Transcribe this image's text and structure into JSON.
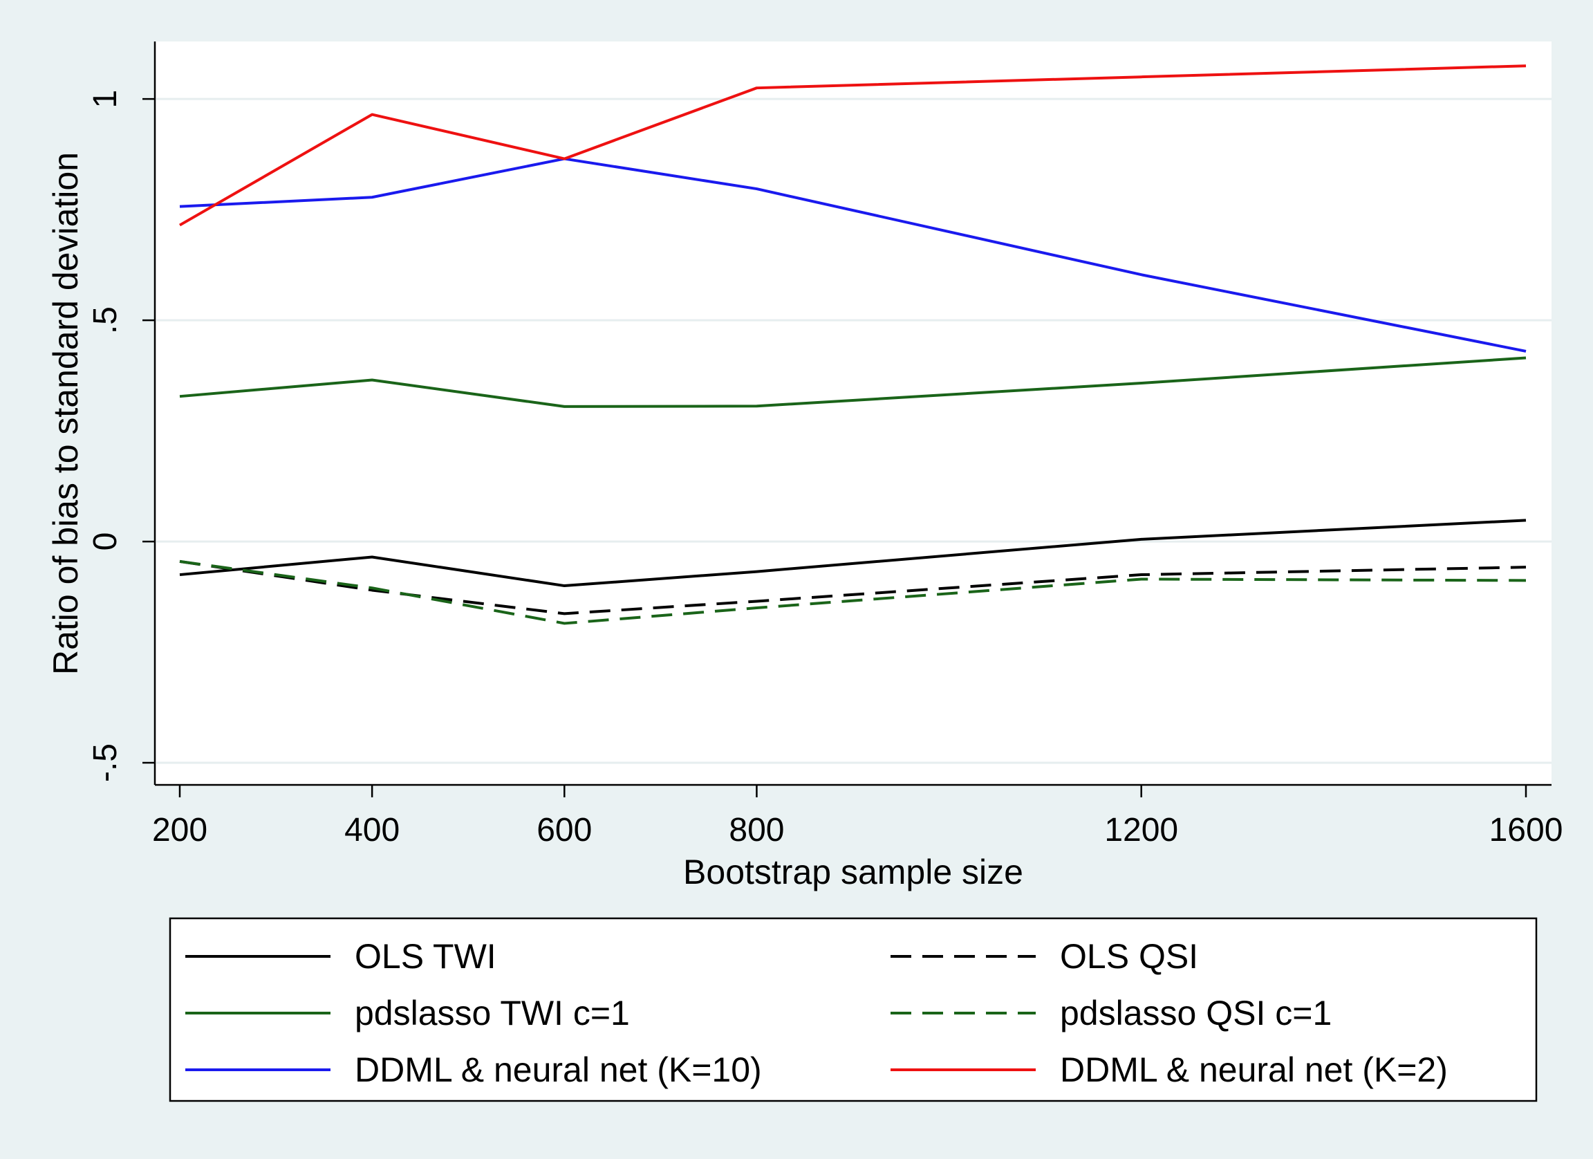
{
  "chart_data": {
    "type": "line",
    "xlabel": "Bootstrap sample size",
    "ylabel": "Ratio of bias to standard deviation",
    "x": [
      200,
      400,
      600,
      800,
      1200,
      1600
    ],
    "xticks": [
      "200",
      "400",
      "600",
      "800",
      "1200",
      "1600"
    ],
    "yticks": [
      "-.5",
      "0",
      ".5",
      "1"
    ],
    "ytick_values": [
      -0.5,
      0,
      0.5,
      1
    ],
    "xlim": [
      200,
      1600
    ],
    "ylim": [
      -0.55,
      1.13
    ],
    "grid": "horizontal",
    "legend_position": "bottom",
    "series": [
      {
        "name": "OLS TWI",
        "color": "#000000",
        "dash": "solid",
        "values": [
          -0.075,
          -0.035,
          -0.1,
          -0.068,
          0.005,
          0.048
        ]
      },
      {
        "name": "OLS QSI",
        "color": "#000000",
        "dash": "dashed",
        "values": [
          -0.045,
          -0.11,
          -0.163,
          -0.135,
          -0.075,
          -0.058
        ]
      },
      {
        "name": "pdslasso TWI c=1",
        "color": "#1a6419",
        "dash": "solid",
        "values": [
          0.328,
          0.365,
          0.305,
          0.306,
          0.358,
          0.415
        ]
      },
      {
        "name": "pdslasso QSI c=1",
        "color": "#1a6419",
        "dash": "dashed",
        "values": [
          -0.045,
          -0.105,
          -0.185,
          -0.15,
          -0.085,
          -0.088
        ]
      },
      {
        "name": "DDML & neural net (K=10)",
        "color": "#1a1aee",
        "dash": "solid",
        "values": [
          0.757,
          0.778,
          0.865,
          0.797,
          0.603,
          0.43
        ]
      },
      {
        "name": "DDML & neural net (K=2)",
        "color": "#ee1111",
        "dash": "solid",
        "values": [
          0.715,
          0.965,
          0.865,
          1.025,
          1.05,
          1.075
        ]
      }
    ]
  }
}
